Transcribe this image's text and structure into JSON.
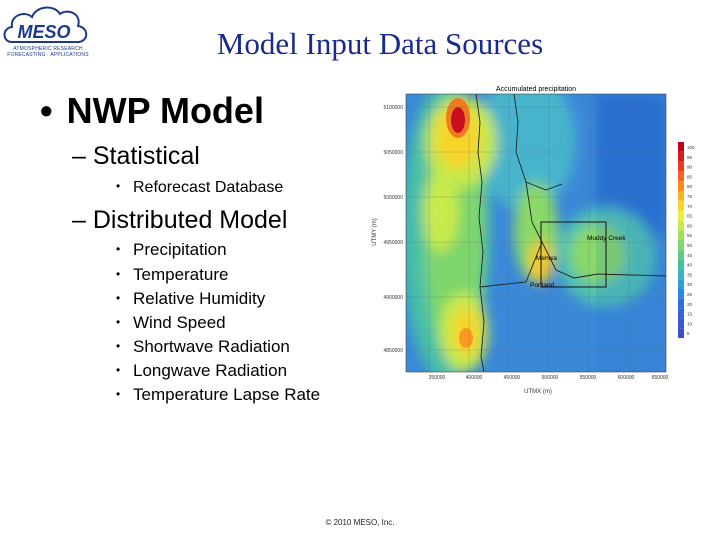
{
  "logo": {
    "wordmark": "MESO",
    "tagline": [
      "ATMOSPHERIC RESEARCH",
      "FORECASTING · APPLICATIONS"
    ]
  },
  "title": "Model Input Data Sources",
  "bullets": {
    "nwp": "NWP Model",
    "statistical": {
      "label": "Statistical",
      "items": [
        "Reforecast Database"
      ]
    },
    "distributed": {
      "label": "Distributed Model",
      "items": [
        "Precipitation",
        "Temperature",
        "Relative Humidity",
        "Wind Speed",
        "Shortwave Radiation",
        "Longwave Radiation",
        "Temperature Lapse Rate"
      ]
    }
  },
  "map": {
    "title": "Accumulated precipitation",
    "labels": [
      "Muddy Creek",
      "Mehwa",
      "Portland"
    ],
    "y_ticks": [
      "5100000",
      "5050000",
      "5000000",
      "4950000",
      "4900000",
      "4850000"
    ],
    "x_ticks": [
      "350000",
      "400000",
      "450000",
      "500000",
      "550000",
      "600000",
      "650000"
    ],
    "xlabel": "UTMX (m)",
    "ylabel": "UTMY (m)",
    "colorbar": [
      "100",
      "95",
      "90",
      "85",
      "80",
      "75",
      "70",
      "65",
      "60",
      "55",
      "50",
      "45",
      "40",
      "35",
      "30",
      "25",
      "20",
      "15",
      "10",
      "5"
    ],
    "colorbar_colors": [
      "#c1001c",
      "#d81a1a",
      "#ec3c1e",
      "#f5651e",
      "#fa8c1a",
      "#fbb21f",
      "#f8d42c",
      "#ecee3c",
      "#c8ea4c",
      "#a2e05a",
      "#7ed66c",
      "#5fcb86",
      "#44c1a3",
      "#34b4c4",
      "#2ca0da",
      "#2a86e2",
      "#2e6ee2",
      "#3560de",
      "#3c56d6",
      "#3c4ec8"
    ]
  },
  "footer": "© 2010 MESO, Inc."
}
